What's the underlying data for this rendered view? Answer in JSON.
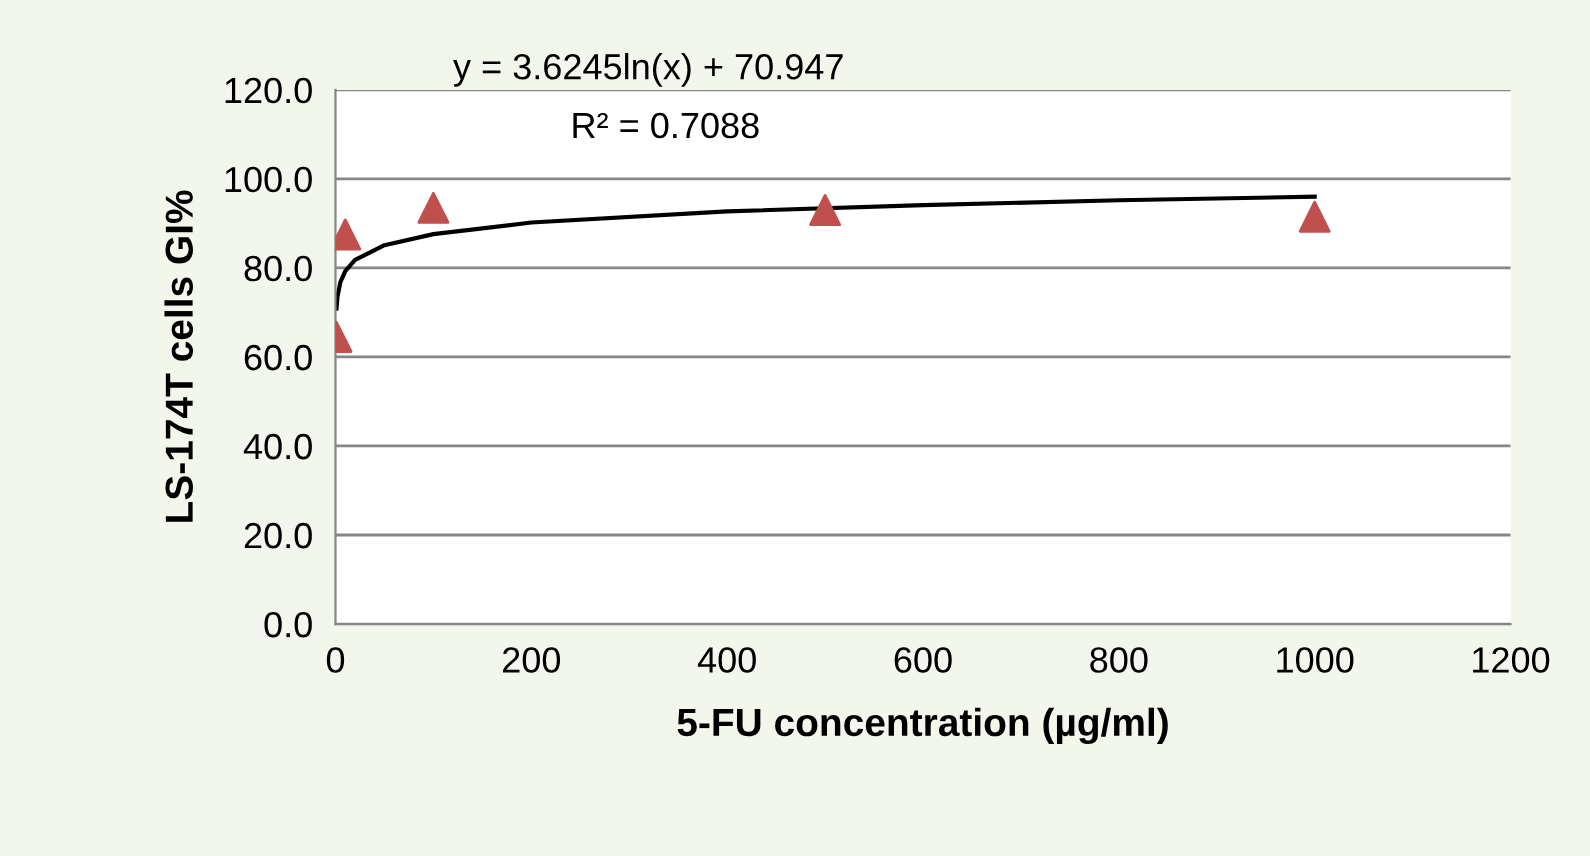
{
  "chart_data": {
    "type": "scatter",
    "xlabel": "5-FU concentration (µg/ml)",
    "ylabel": "LS-174T cells GI%",
    "series": [
      {
        "color": "#c0504d",
        "marker": "triangle",
        "x": [
          1,
          10,
          100,
          500,
          1000
        ],
        "values": [
          64.5,
          87.5,
          93.5,
          93.0,
          91.5
        ]
      },
      {
        "type": "line",
        "color": "#000000",
        "marker": "none",
        "line_style": "solid",
        "x": [
          1,
          2,
          5,
          10,
          20,
          50,
          100,
          200,
          400,
          600,
          800,
          1000
        ],
        "values": [
          70.9,
          73.5,
          76.8,
          79.3,
          81.8,
          85.1,
          87.6,
          90.2,
          92.7,
          94.1,
          95.2,
          96.0
        ]
      }
    ],
    "xlim": [
      0,
      1200
    ],
    "xticks": [
      0,
      200,
      400,
      600,
      800,
      1000,
      1200
    ],
    "ylim": [
      0,
      120
    ],
    "yticks": [
      {
        "value": 0,
        "label": "0.0"
      },
      {
        "value": 20,
        "label": "20.0"
      },
      {
        "value": 40,
        "label": "40.0"
      },
      {
        "value": 60,
        "label": "60.0"
      },
      {
        "value": 80,
        "label": "80.0"
      },
      {
        "value": 100,
        "label": "100.0"
      },
      {
        "value": 120,
        "label": "120.0"
      }
    ],
    "grid": "y",
    "annotations": [
      "y = 3.6245ln(x) + 70.947",
      "R² = 0.7088"
    ]
  }
}
